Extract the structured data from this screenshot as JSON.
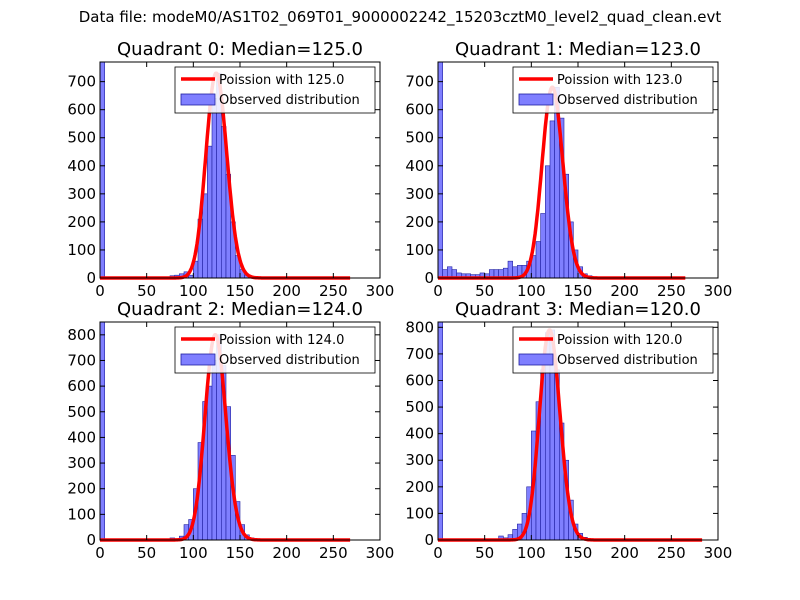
{
  "suptitle": "Data file: modeM0/AS1T02_069T01_9000002242_15203cztM0_level2_quad_clean.evt",
  "colors": {
    "bar": "#7f7fff",
    "bar_edge": "#2020a0",
    "curve": "#ff0000",
    "axis": "#000000"
  },
  "chart_data": [
    {
      "type": "bar",
      "title": "Quadrant 0: Median=125.0",
      "xlim": [
        0,
        300
      ],
      "ylim": [
        0,
        770
      ],
      "xticks": [
        0,
        50,
        100,
        150,
        200,
        250,
        300
      ],
      "yticks": [
        0,
        100,
        200,
        300,
        400,
        500,
        600,
        700
      ],
      "legend": {
        "placement": "top-right",
        "curve_label": "Poission with 125.0",
        "bar_label": "Observed distribution"
      },
      "bar_width": 5,
      "bars": [
        [
          0,
          770
        ],
        [
          75,
          8
        ],
        [
          80,
          10
        ],
        [
          85,
          15
        ],
        [
          90,
          22
        ],
        [
          95,
          10
        ],
        [
          100,
          60
        ],
        [
          105,
          210
        ],
        [
          110,
          300
        ],
        [
          115,
          470
        ],
        [
          120,
          640
        ],
        [
          125,
          730
        ],
        [
          130,
          540
        ],
        [
          135,
          370
        ],
        [
          140,
          200
        ],
        [
          145,
          80
        ],
        [
          150,
          30
        ],
        [
          155,
          10
        ],
        [
          160,
          4
        ]
      ],
      "poisson_mean": 125,
      "curve_x_range": [
        0,
        268
      ]
    },
    {
      "type": "bar",
      "title": "Quadrant 1: Median=123.0",
      "xlim": [
        0,
        300
      ],
      "ylim": [
        0,
        770
      ],
      "xticks": [
        0,
        50,
        100,
        150,
        200,
        250,
        300
      ],
      "yticks": [
        0,
        100,
        200,
        300,
        400,
        500,
        600,
        700
      ],
      "legend": {
        "placement": "top-right",
        "curve_label": "Poission with 123.0",
        "bar_label": "Observed distribution"
      },
      "bar_width": 5,
      "bars": [
        [
          0,
          770
        ],
        [
          5,
          30
        ],
        [
          10,
          40
        ],
        [
          15,
          30
        ],
        [
          20,
          18
        ],
        [
          25,
          15
        ],
        [
          30,
          15
        ],
        [
          35,
          12
        ],
        [
          40,
          12
        ],
        [
          45,
          18
        ],
        [
          50,
          15
        ],
        [
          55,
          30
        ],
        [
          60,
          30
        ],
        [
          65,
          30
        ],
        [
          70,
          35
        ],
        [
          75,
          60
        ],
        [
          80,
          40
        ],
        [
          85,
          45
        ],
        [
          90,
          45
        ],
        [
          95,
          60
        ],
        [
          100,
          80
        ],
        [
          105,
          130
        ],
        [
          110,
          230
        ],
        [
          115,
          400
        ],
        [
          120,
          560
        ],
        [
          125,
          680
        ],
        [
          130,
          570
        ],
        [
          135,
          370
        ],
        [
          140,
          200
        ],
        [
          145,
          100
        ],
        [
          150,
          40
        ],
        [
          155,
          15
        ],
        [
          160,
          8
        ]
      ],
      "poisson_mean": 123,
      "curve_x_range": [
        0,
        265
      ]
    },
    {
      "type": "bar",
      "title": "Quadrant 2: Median=124.0",
      "xlim": [
        0,
        300
      ],
      "ylim": [
        0,
        850
      ],
      "xticks": [
        0,
        50,
        100,
        150,
        200,
        250,
        300
      ],
      "yticks": [
        0,
        100,
        200,
        300,
        400,
        500,
        600,
        700,
        800
      ],
      "legend": {
        "placement": "top-right",
        "curve_label": "Poission with 124.0",
        "bar_label": "Observed distribution"
      },
      "bar_width": 5,
      "bars": [
        [
          0,
          850
        ],
        [
          75,
          8
        ],
        [
          80,
          5
        ],
        [
          85,
          15
        ],
        [
          90,
          60
        ],
        [
          95,
          80
        ],
        [
          100,
          200
        ],
        [
          105,
          380
        ],
        [
          110,
          540
        ],
        [
          115,
          600
        ],
        [
          120,
          700
        ],
        [
          125,
          800
        ],
        [
          130,
          680
        ],
        [
          135,
          520
        ],
        [
          140,
          330
        ],
        [
          145,
          150
        ],
        [
          150,
          60
        ],
        [
          155,
          20
        ],
        [
          160,
          8
        ],
        [
          165,
          3
        ]
      ],
      "poisson_mean": 124,
      "curve_x_range": [
        0,
        268
      ]
    },
    {
      "type": "bar",
      "title": "Quadrant 3: Median=120.0",
      "xlim": [
        0,
        300
      ],
      "ylim": [
        0,
        820
      ],
      "xticks": [
        0,
        50,
        100,
        150,
        200,
        250,
        300
      ],
      "yticks": [
        0,
        100,
        200,
        300,
        400,
        500,
        600,
        700,
        800
      ],
      "legend": {
        "placement": "top-right",
        "curve_label": "Poission with 120.0",
        "bar_label": "Observed distribution"
      },
      "bar_width": 5,
      "bars": [
        [
          0,
          820
        ],
        [
          65,
          15
        ],
        [
          70,
          8
        ],
        [
          75,
          20
        ],
        [
          80,
          40
        ],
        [
          85,
          60
        ],
        [
          90,
          100
        ],
        [
          95,
          200
        ],
        [
          100,
          410
        ],
        [
          105,
          520
        ],
        [
          110,
          640
        ],
        [
          115,
          780
        ],
        [
          120,
          790
        ],
        [
          125,
          640
        ],
        [
          130,
          440
        ],
        [
          135,
          300
        ],
        [
          140,
          150
        ],
        [
          145,
          60
        ],
        [
          150,
          25
        ],
        [
          155,
          10
        ],
        [
          160,
          4
        ]
      ],
      "poisson_mean": 120,
      "curve_x_range": [
        0,
        283
      ]
    }
  ]
}
